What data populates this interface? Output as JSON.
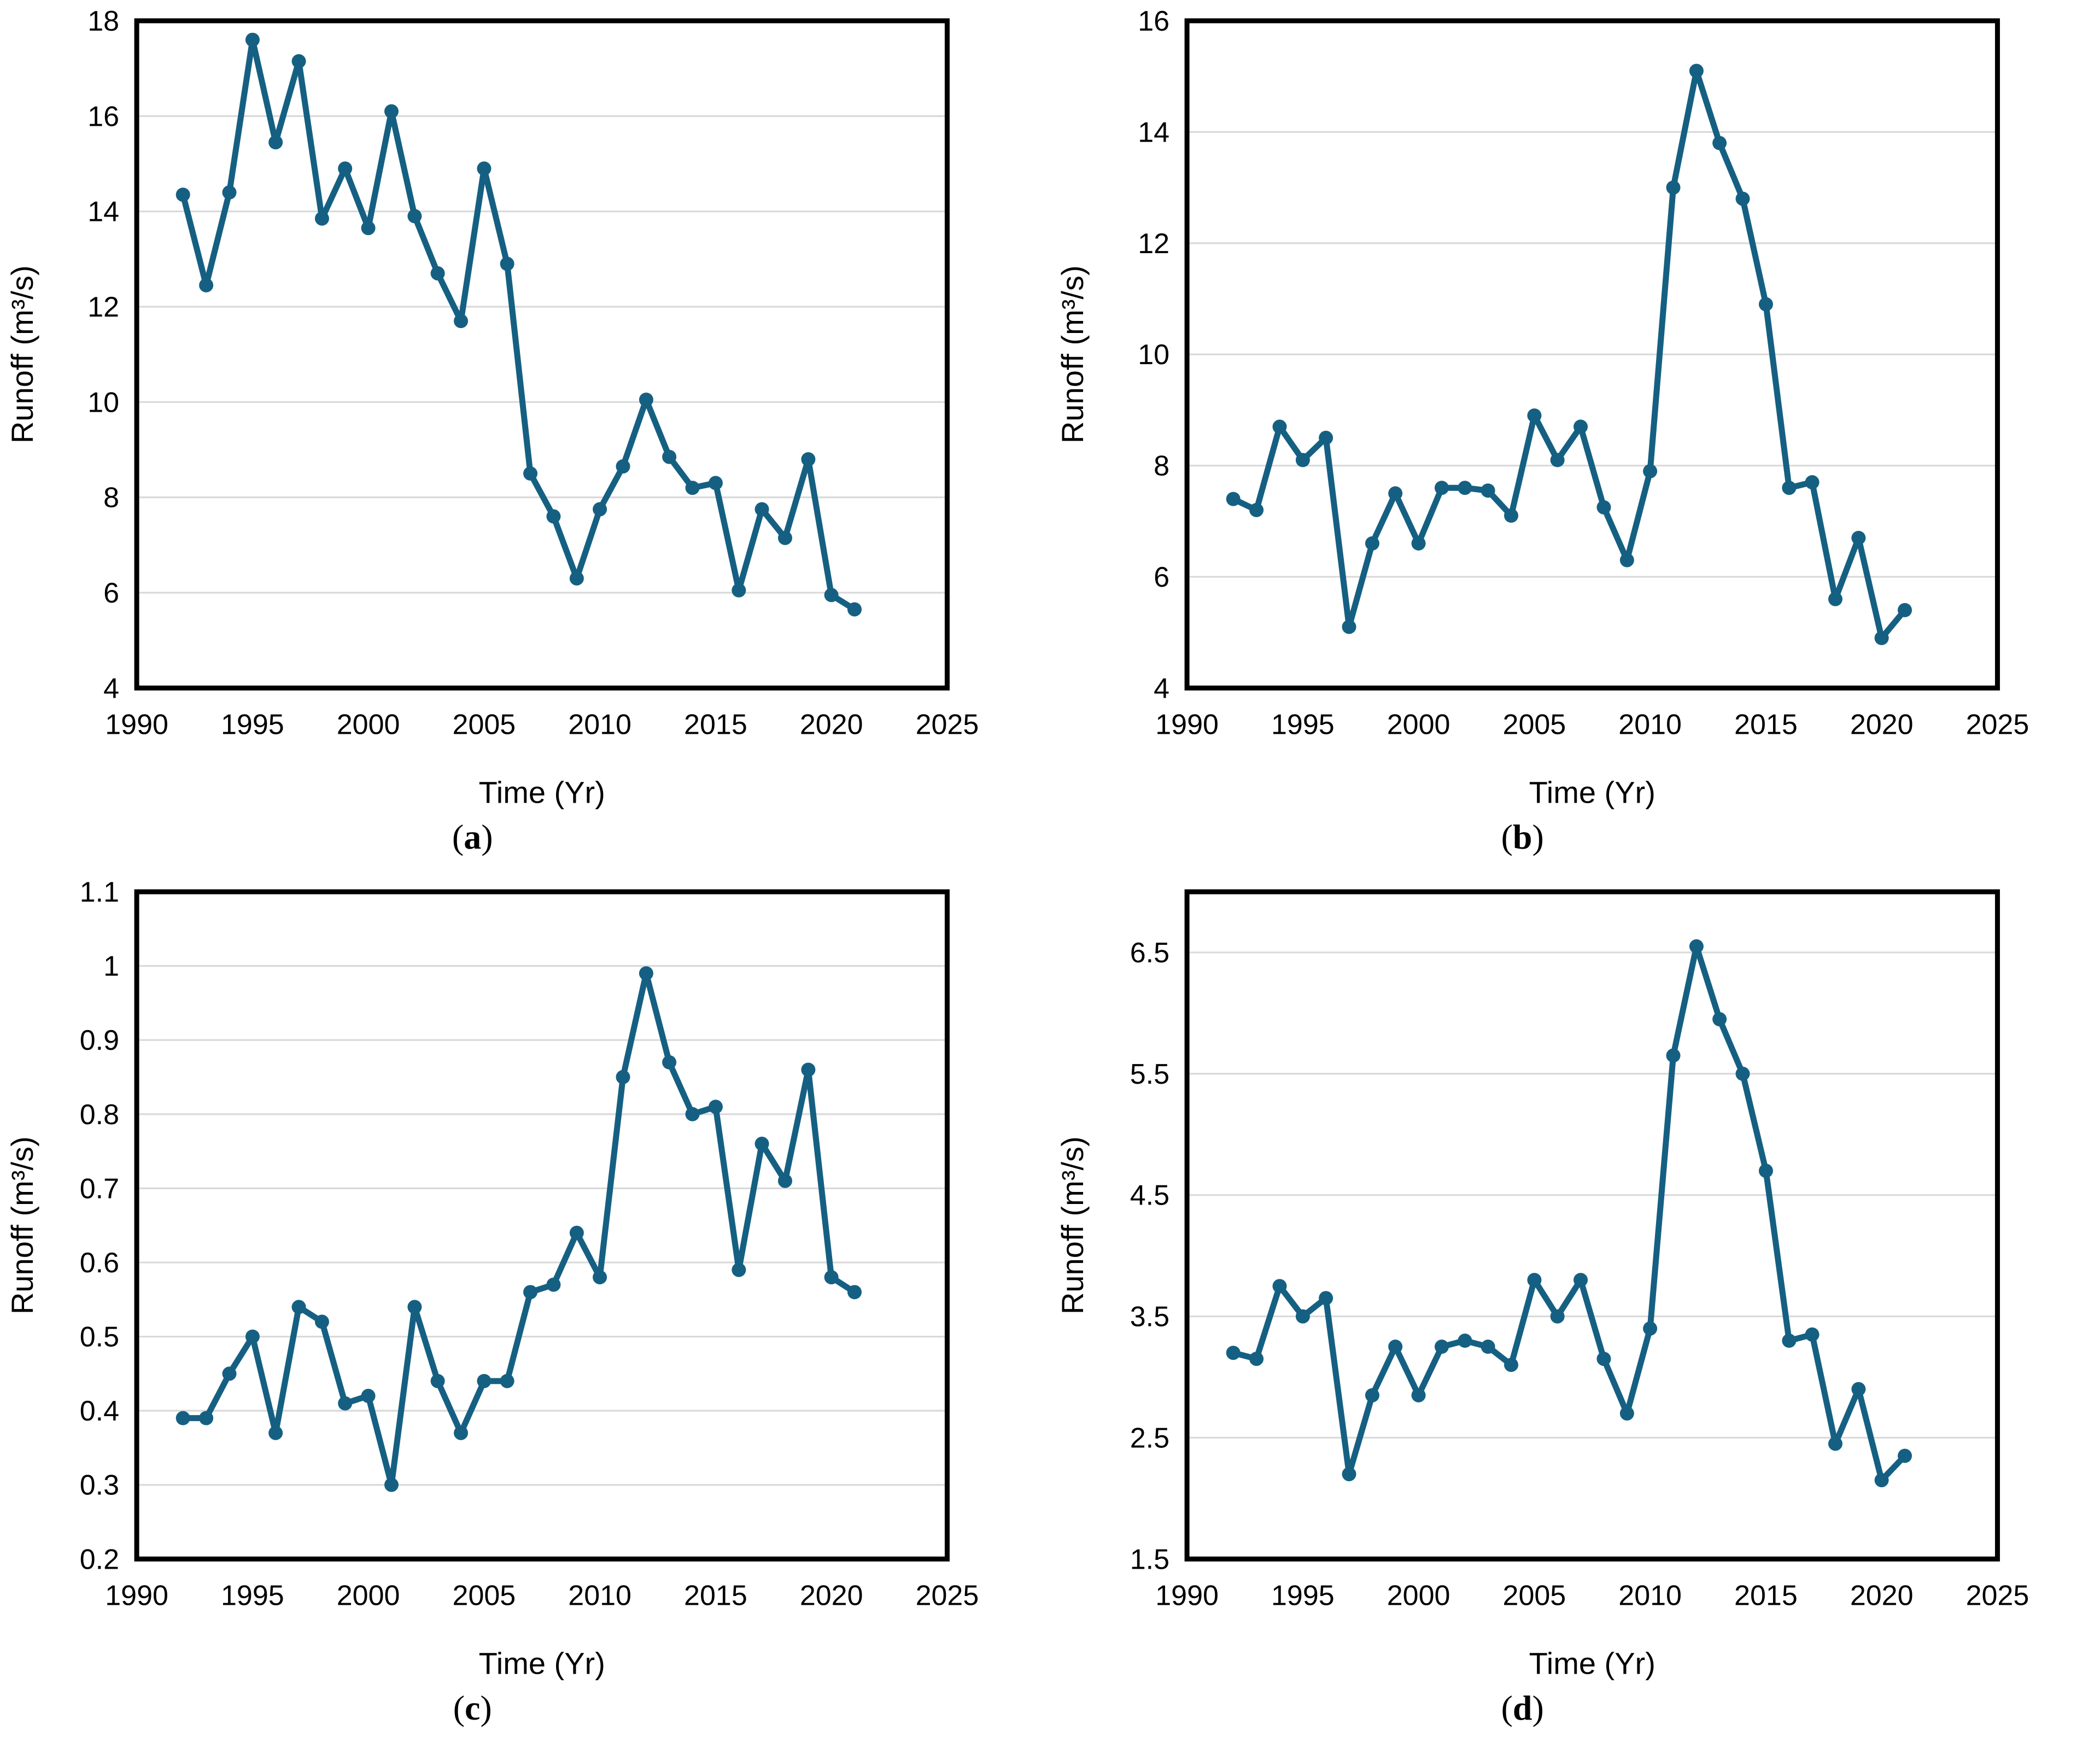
{
  "figure": {
    "background": "#ffffff",
    "line_color": "#156082",
    "grid_color": "#D9D9D9",
    "axis_color": "#000000",
    "x_axis_title": "Time (Yr)",
    "y_axis_title": "Runoff (m³/s)"
  },
  "chart_data": [
    {
      "id": "a",
      "type": "line",
      "title": "",
      "xlabel": "Time (Yr)",
      "ylabel": "Runoff (m³/s)",
      "legend": "none",
      "grid": "horizontal",
      "xlim": [
        1990,
        2025
      ],
      "ylim": [
        4,
        18
      ],
      "x_ticks": [
        1990,
        1995,
        2000,
        2005,
        2010,
        2015,
        2020,
        2025
      ],
      "y_ticks": [
        4,
        6,
        8,
        10,
        12,
        14,
        16,
        18
      ],
      "x": [
        1992,
        1993,
        1994,
        1995,
        1996,
        1997,
        1998,
        1999,
        2000,
        2001,
        2002,
        2003,
        2004,
        2005,
        2006,
        2007,
        2008,
        2009,
        2010,
        2011,
        2012,
        2013,
        2014,
        2015,
        2016,
        2017,
        2018,
        2019,
        2020,
        2021
      ],
      "values": [
        14.35,
        12.45,
        14.4,
        17.6,
        15.45,
        17.15,
        13.85,
        14.9,
        13.65,
        16.1,
        13.9,
        12.7,
        11.7,
        14.9,
        12.9,
        8.5,
        7.6,
        6.3,
        7.75,
        8.65,
        10.05,
        8.85,
        8.2,
        8.3,
        6.05,
        7.75,
        7.15,
        8.8,
        5.95,
        5.65
      ],
      "caption": {
        "open": "(",
        "letter": "a",
        "close": ")"
      }
    },
    {
      "id": "b",
      "type": "line",
      "title": "",
      "xlabel": "Time (Yr)",
      "ylabel": "Runoff (m³/s)",
      "legend": "none",
      "grid": "horizontal",
      "xlim": [
        1990,
        2025
      ],
      "ylim": [
        4,
        16
      ],
      "x_ticks": [
        1990,
        1995,
        2000,
        2005,
        2010,
        2015,
        2020,
        2025
      ],
      "y_ticks": [
        4,
        6,
        8,
        10,
        12,
        14,
        16
      ],
      "x": [
        1992,
        1993,
        1994,
        1995,
        1996,
        1997,
        1998,
        1999,
        2000,
        2001,
        2002,
        2003,
        2004,
        2005,
        2006,
        2007,
        2008,
        2009,
        2010,
        2011,
        2012,
        2013,
        2014,
        2015,
        2016,
        2017,
        2018,
        2019,
        2020,
        2021
      ],
      "values": [
        7.4,
        7.2,
        8.7,
        8.1,
        8.5,
        5.1,
        6.6,
        7.5,
        6.6,
        7.6,
        7.6,
        7.55,
        7.1,
        8.9,
        8.1,
        8.7,
        7.25,
        6.3,
        7.9,
        13.0,
        15.1,
        13.8,
        12.8,
        10.9,
        7.6,
        7.7,
        5.6,
        6.7,
        4.9,
        5.4
      ],
      "caption": {
        "open": "(",
        "letter": "b",
        "close": ")"
      }
    },
    {
      "id": "c",
      "type": "line",
      "title": "",
      "xlabel": "Time (Yr)",
      "ylabel": "Runoff (m³/s)",
      "legend": "none",
      "grid": "horizontal",
      "xlim": [
        1990,
        2025
      ],
      "ylim": [
        0.2,
        1.1
      ],
      "x_ticks": [
        1990,
        1995,
        2000,
        2005,
        2010,
        2015,
        2020,
        2025
      ],
      "y_ticks": [
        0.2,
        0.3,
        0.4,
        0.5,
        0.6,
        0.7,
        0.8,
        0.9,
        1,
        1.1
      ],
      "x": [
        1992,
        1993,
        1994,
        1995,
        1996,
        1997,
        1998,
        1999,
        2000,
        2001,
        2002,
        2003,
        2004,
        2005,
        2006,
        2007,
        2008,
        2009,
        2010,
        2011,
        2012,
        2013,
        2014,
        2015,
        2016,
        2017,
        2018,
        2019,
        2020,
        2021
      ],
      "values": [
        0.39,
        0.39,
        0.45,
        0.5,
        0.37,
        0.54,
        0.52,
        0.41,
        0.42,
        0.3,
        0.54,
        0.44,
        0.37,
        0.44,
        0.44,
        0.56,
        0.57,
        0.64,
        0.58,
        0.85,
        0.99,
        0.87,
        0.8,
        0.81,
        0.59,
        0.76,
        0.71,
        0.86,
        0.58,
        0.56
      ],
      "caption": {
        "open": "(",
        "letter": "c",
        "close": ")"
      }
    },
    {
      "id": "d",
      "type": "line",
      "title": "",
      "xlabel": "Time (Yr)",
      "ylabel": "Runoff (m³/s)",
      "legend": "none",
      "grid": "horizontal",
      "xlim": [
        1990,
        2025
      ],
      "ylim": [
        1.5,
        7.0
      ],
      "x_ticks": [
        1990,
        1995,
        2000,
        2005,
        2010,
        2015,
        2020,
        2025
      ],
      "y_ticks": [
        1.5,
        2.5,
        3.5,
        4.5,
        5.5,
        6.5
      ],
      "x": [
        1992,
        1993,
        1994,
        1995,
        1996,
        1997,
        1998,
        1999,
        2000,
        2001,
        2002,
        2003,
        2004,
        2005,
        2006,
        2007,
        2008,
        2009,
        2010,
        2011,
        2012,
        2013,
        2014,
        2015,
        2016,
        2017,
        2018,
        2019,
        2020,
        2021
      ],
      "values": [
        3.2,
        3.15,
        3.75,
        3.5,
        3.65,
        2.2,
        2.85,
        3.25,
        2.85,
        3.25,
        3.3,
        3.25,
        3.1,
        3.8,
        3.5,
        3.8,
        3.15,
        2.7,
        3.4,
        5.65,
        6.55,
        5.95,
        5.5,
        4.7,
        3.3,
        3.35,
        2.45,
        2.9,
        2.15,
        2.35
      ],
      "caption": {
        "open": "(",
        "letter": "d",
        "close": ")"
      }
    }
  ]
}
